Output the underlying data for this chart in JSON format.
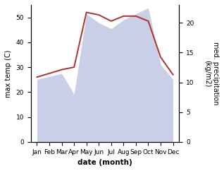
{
  "months": [
    "Jan",
    "Feb",
    "Mar",
    "Apr",
    "May",
    "Jun",
    "Jul",
    "Aug",
    "Sep",
    "Oct",
    "Nov",
    "Dec"
  ],
  "month_positions": [
    1,
    2,
    3,
    4,
    5,
    6,
    7,
    8,
    9,
    10,
    11,
    12
  ],
  "temp_max": [
    26.0,
    27.5,
    29.0,
    30.0,
    52.0,
    51.0,
    48.5,
    50.5,
    50.5,
    48.5,
    34.0,
    27.0
  ],
  "precip": [
    10.5,
    11.0,
    11.5,
    8.0,
    21.5,
    20.0,
    19.0,
    20.5,
    21.5,
    22.5,
    13.0,
    10.5
  ],
  "temp_color": "#b03030",
  "precip_fill_color": "#b8c0e0",
  "precip_fill_alpha": 0.75,
  "left_ylim": [
    0,
    55
  ],
  "right_ylim": [
    0,
    23.0
  ],
  "left_yticks": [
    0,
    10,
    20,
    30,
    40,
    50
  ],
  "right_yticks": [
    0,
    5,
    10,
    15,
    20
  ],
  "ylabel_left": "max temp (C)",
  "ylabel_right": "med. precipitation\n(kg/m2)",
  "xlabel": "date (month)",
  "bg_color": "#ffffff",
  "plot_bg_color": "#ffffff",
  "fontsize_label": 7.0,
  "fontsize_tick": 6.5,
  "fontsize_xlabel": 7.5,
  "line_width": 1.4
}
